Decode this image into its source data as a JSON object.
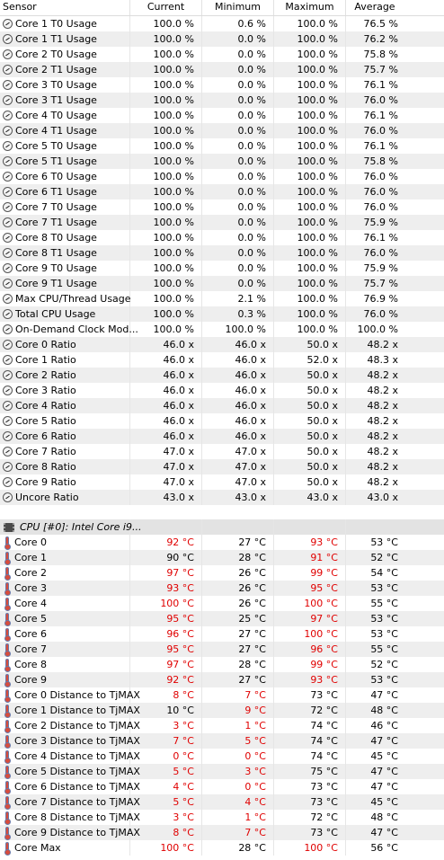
{
  "header": {
    "sensor": "Sensor",
    "current": "Current",
    "minimum": "Minimum",
    "maximum": "Maximum",
    "average": "Average"
  },
  "usage_rows": [
    {
      "icon": "gauge-icon",
      "name": "Core 1 T0 Usage",
      "current": "100.0 %",
      "minimum": "0.6 %",
      "maximum": "100.0 %",
      "average": "76.5 %"
    },
    {
      "icon": "gauge-icon",
      "name": "Core 1 T1 Usage",
      "current": "100.0 %",
      "minimum": "0.0 %",
      "maximum": "100.0 %",
      "average": "76.2 %"
    },
    {
      "icon": "gauge-icon",
      "name": "Core 2 T0 Usage",
      "current": "100.0 %",
      "minimum": "0.0 %",
      "maximum": "100.0 %",
      "average": "75.8 %"
    },
    {
      "icon": "gauge-icon",
      "name": "Core 2 T1 Usage",
      "current": "100.0 %",
      "minimum": "0.0 %",
      "maximum": "100.0 %",
      "average": "75.7 %"
    },
    {
      "icon": "gauge-icon",
      "name": "Core 3 T0 Usage",
      "current": "100.0 %",
      "minimum": "0.0 %",
      "maximum": "100.0 %",
      "average": "76.1 %"
    },
    {
      "icon": "gauge-icon",
      "name": "Core 3 T1 Usage",
      "current": "100.0 %",
      "minimum": "0.0 %",
      "maximum": "100.0 %",
      "average": "76.0 %"
    },
    {
      "icon": "gauge-icon",
      "name": "Core 4 T0 Usage",
      "current": "100.0 %",
      "minimum": "0.0 %",
      "maximum": "100.0 %",
      "average": "76.1 %"
    },
    {
      "icon": "gauge-icon",
      "name": "Core 4 T1 Usage",
      "current": "100.0 %",
      "minimum": "0.0 %",
      "maximum": "100.0 %",
      "average": "76.0 %"
    },
    {
      "icon": "gauge-icon",
      "name": "Core 5 T0 Usage",
      "current": "100.0 %",
      "minimum": "0.0 %",
      "maximum": "100.0 %",
      "average": "76.1 %"
    },
    {
      "icon": "gauge-icon",
      "name": "Core 5 T1 Usage",
      "current": "100.0 %",
      "minimum": "0.0 %",
      "maximum": "100.0 %",
      "average": "75.8 %"
    },
    {
      "icon": "gauge-icon",
      "name": "Core 6 T0 Usage",
      "current": "100.0 %",
      "minimum": "0.0 %",
      "maximum": "100.0 %",
      "average": "76.0 %"
    },
    {
      "icon": "gauge-icon",
      "name": "Core 6 T1 Usage",
      "current": "100.0 %",
      "minimum": "0.0 %",
      "maximum": "100.0 %",
      "average": "76.0 %"
    },
    {
      "icon": "gauge-icon",
      "name": "Core 7 T0 Usage",
      "current": "100.0 %",
      "minimum": "0.0 %",
      "maximum": "100.0 %",
      "average": "76.0 %"
    },
    {
      "icon": "gauge-icon",
      "name": "Core 7 T1 Usage",
      "current": "100.0 %",
      "minimum": "0.0 %",
      "maximum": "100.0 %",
      "average": "75.9 %"
    },
    {
      "icon": "gauge-icon",
      "name": "Core 8 T0 Usage",
      "current": "100.0 %",
      "minimum": "0.0 %",
      "maximum": "100.0 %",
      "average": "76.1 %"
    },
    {
      "icon": "gauge-icon",
      "name": "Core 8 T1 Usage",
      "current": "100.0 %",
      "minimum": "0.0 %",
      "maximum": "100.0 %",
      "average": "76.0 %"
    },
    {
      "icon": "gauge-icon",
      "name": "Core 9 T0 Usage",
      "current": "100.0 %",
      "minimum": "0.0 %",
      "maximum": "100.0 %",
      "average": "75.9 %"
    },
    {
      "icon": "gauge-icon",
      "name": "Core 9 T1 Usage",
      "current": "100.0 %",
      "minimum": "0.0 %",
      "maximum": "100.0 %",
      "average": "75.7 %"
    },
    {
      "icon": "gauge-icon",
      "name": "Max CPU/Thread Usage",
      "current": "100.0 %",
      "minimum": "2.1 %",
      "maximum": "100.0 %",
      "average": "76.9 %"
    },
    {
      "icon": "gauge-icon",
      "name": "Total CPU Usage",
      "current": "100.0 %",
      "minimum": "0.3 %",
      "maximum": "100.0 %",
      "average": "76.0 %"
    },
    {
      "icon": "gauge-icon",
      "name": "On-Demand Clock Mod...",
      "current": "100.0 %",
      "minimum": "100.0 %",
      "maximum": "100.0 %",
      "average": "100.0 %"
    },
    {
      "icon": "gauge-icon",
      "name": "Core 0 Ratio",
      "current": "46.0 x",
      "minimum": "46.0 x",
      "maximum": "50.0 x",
      "average": "48.2 x"
    },
    {
      "icon": "gauge-icon",
      "name": "Core 1 Ratio",
      "current": "46.0 x",
      "minimum": "46.0 x",
      "maximum": "52.0 x",
      "average": "48.3 x"
    },
    {
      "icon": "gauge-icon",
      "name": "Core 2 Ratio",
      "current": "46.0 x",
      "minimum": "46.0 x",
      "maximum": "50.0 x",
      "average": "48.2 x"
    },
    {
      "icon": "gauge-icon",
      "name": "Core 3 Ratio",
      "current": "46.0 x",
      "minimum": "46.0 x",
      "maximum": "50.0 x",
      "average": "48.2 x"
    },
    {
      "icon": "gauge-icon",
      "name": "Core 4 Ratio",
      "current": "46.0 x",
      "minimum": "46.0 x",
      "maximum": "50.0 x",
      "average": "48.2 x"
    },
    {
      "icon": "gauge-icon",
      "name": "Core 5 Ratio",
      "current": "46.0 x",
      "minimum": "46.0 x",
      "maximum": "50.0 x",
      "average": "48.2 x"
    },
    {
      "icon": "gauge-icon",
      "name": "Core 6 Ratio",
      "current": "46.0 x",
      "minimum": "46.0 x",
      "maximum": "50.0 x",
      "average": "48.2 x"
    },
    {
      "icon": "gauge-icon",
      "name": "Core 7 Ratio",
      "current": "47.0 x",
      "minimum": "47.0 x",
      "maximum": "50.0 x",
      "average": "48.2 x"
    },
    {
      "icon": "gauge-icon",
      "name": "Core 8 Ratio",
      "current": "47.0 x",
      "minimum": "47.0 x",
      "maximum": "50.0 x",
      "average": "48.2 x"
    },
    {
      "icon": "gauge-icon",
      "name": "Core 9 Ratio",
      "current": "47.0 x",
      "minimum": "47.0 x",
      "maximum": "50.0 x",
      "average": "48.2 x"
    },
    {
      "icon": "gauge-icon",
      "name": "Uncore Ratio",
      "current": "43.0 x",
      "minimum": "43.0 x",
      "maximum": "43.0 x",
      "average": "43.0 x"
    }
  ],
  "group": {
    "icon": "cpu-chip-icon",
    "name": "CPU [#0]: Intel Core i9..."
  },
  "temp_rows": [
    {
      "icon": "thermometer-icon",
      "name": "Core 0",
      "current": "92 °C",
      "minimum": "27 °C",
      "maximum": "93 °C",
      "average": "53 °C",
      "red": [
        true,
        false,
        true
      ]
    },
    {
      "icon": "thermometer-icon",
      "name": "Core 1",
      "current": "90 °C",
      "minimum": "28 °C",
      "maximum": "91 °C",
      "average": "52 °C",
      "red": [
        false,
        false,
        true
      ]
    },
    {
      "icon": "thermometer-icon",
      "name": "Core 2",
      "current": "97 °C",
      "minimum": "26 °C",
      "maximum": "99 °C",
      "average": "54 °C",
      "red": [
        true,
        false,
        true
      ]
    },
    {
      "icon": "thermometer-icon",
      "name": "Core 3",
      "current": "93 °C",
      "minimum": "26 °C",
      "maximum": "95 °C",
      "average": "53 °C",
      "red": [
        true,
        false,
        true
      ]
    },
    {
      "icon": "thermometer-icon",
      "name": "Core 4",
      "current": "100 °C",
      "minimum": "26 °C",
      "maximum": "100 °C",
      "average": "55 °C",
      "red": [
        true,
        false,
        true
      ]
    },
    {
      "icon": "thermometer-icon",
      "name": "Core 5",
      "current": "95 °C",
      "minimum": "25 °C",
      "maximum": "97 °C",
      "average": "53 °C",
      "red": [
        true,
        false,
        true
      ]
    },
    {
      "icon": "thermometer-icon",
      "name": "Core 6",
      "current": "96 °C",
      "minimum": "27 °C",
      "maximum": "100 °C",
      "average": "53 °C",
      "red": [
        true,
        false,
        true
      ]
    },
    {
      "icon": "thermometer-icon",
      "name": "Core 7",
      "current": "95 °C",
      "minimum": "27 °C",
      "maximum": "96 °C",
      "average": "55 °C",
      "red": [
        true,
        false,
        true
      ]
    },
    {
      "icon": "thermometer-icon",
      "name": "Core 8",
      "current": "97 °C",
      "minimum": "28 °C",
      "maximum": "99 °C",
      "average": "52 °C",
      "red": [
        true,
        false,
        true
      ]
    },
    {
      "icon": "thermometer-icon",
      "name": "Core 9",
      "current": "92 °C",
      "minimum": "27 °C",
      "maximum": "93 °C",
      "average": "53 °C",
      "red": [
        true,
        false,
        true
      ]
    },
    {
      "icon": "thermometer-icon",
      "name": "Core 0 Distance to TjMAX",
      "current": "8 °C",
      "minimum": "7 °C",
      "maximum": "73 °C",
      "average": "47 °C",
      "red": [
        true,
        true,
        false
      ]
    },
    {
      "icon": "thermometer-icon",
      "name": "Core 1 Distance to TjMAX",
      "current": "10 °C",
      "minimum": "9 °C",
      "maximum": "72 °C",
      "average": "48 °C",
      "red": [
        false,
        true,
        false
      ]
    },
    {
      "icon": "thermometer-icon",
      "name": "Core 2 Distance to TjMAX",
      "current": "3 °C",
      "minimum": "1 °C",
      "maximum": "74 °C",
      "average": "46 °C",
      "red": [
        true,
        true,
        false
      ]
    },
    {
      "icon": "thermometer-icon",
      "name": "Core 3 Distance to TjMAX",
      "current": "7 °C",
      "minimum": "5 °C",
      "maximum": "74 °C",
      "average": "47 °C",
      "red": [
        true,
        true,
        false
      ]
    },
    {
      "icon": "thermometer-icon",
      "name": "Core 4 Distance to TjMAX",
      "current": "0 °C",
      "minimum": "0 °C",
      "maximum": "74 °C",
      "average": "45 °C",
      "red": [
        true,
        true,
        false
      ]
    },
    {
      "icon": "thermometer-icon",
      "name": "Core 5 Distance to TjMAX",
      "current": "5 °C",
      "minimum": "3 °C",
      "maximum": "75 °C",
      "average": "47 °C",
      "red": [
        true,
        true,
        false
      ]
    },
    {
      "icon": "thermometer-icon",
      "name": "Core 6 Distance to TjMAX",
      "current": "4 °C",
      "minimum": "0 °C",
      "maximum": "73 °C",
      "average": "47 °C",
      "red": [
        true,
        true,
        false
      ]
    },
    {
      "icon": "thermometer-icon",
      "name": "Core 7 Distance to TjMAX",
      "current": "5 °C",
      "minimum": "4 °C",
      "maximum": "73 °C",
      "average": "45 °C",
      "red": [
        true,
        true,
        false
      ]
    },
    {
      "icon": "thermometer-icon",
      "name": "Core 8 Distance to TjMAX",
      "current": "3 °C",
      "minimum": "1 °C",
      "maximum": "72 °C",
      "average": "48 °C",
      "red": [
        true,
        true,
        false
      ]
    },
    {
      "icon": "thermometer-icon",
      "name": "Core 9 Distance to TjMAX",
      "current": "8 °C",
      "minimum": "7 °C",
      "maximum": "73 °C",
      "average": "47 °C",
      "red": [
        true,
        true,
        false
      ]
    },
    {
      "icon": "thermometer-icon",
      "name": "Core Max",
      "current": "100 °C",
      "minimum": "28 °C",
      "maximum": "100 °C",
      "average": "56 °C",
      "red": [
        true,
        false,
        true
      ]
    }
  ],
  "colors": {
    "alert": "#e00000",
    "row_alt": "#eeeeee",
    "group_bg": "#e3e3e3"
  }
}
